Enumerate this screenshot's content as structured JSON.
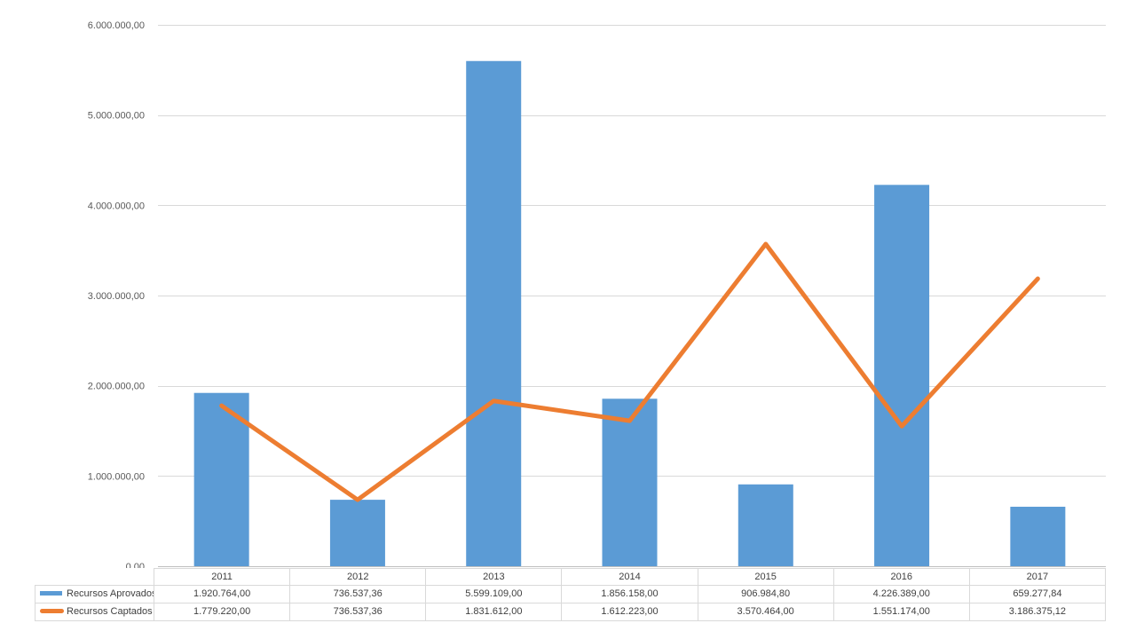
{
  "chart_data": {
    "type": "combo",
    "title": "",
    "xlabel": "",
    "ylabel": "",
    "categories": [
      "2011",
      "2012",
      "2013",
      "2014",
      "2015",
      "2016",
      "2017"
    ],
    "series": [
      {
        "name": "Recursos Aprovados",
        "type": "bar",
        "color": "#5B9BD5",
        "values": [
          1920764.0,
          736537.36,
          5599109.0,
          1856158.0,
          906984.8,
          4226389.0,
          659277.84
        ],
        "formatted": [
          "1.920.764,00",
          "736.537,36",
          "5.599.109,00",
          "1.856.158,00",
          "906.984,80",
          "4.226.389,00",
          "659.277,84"
        ]
      },
      {
        "name": "Recursos Captados",
        "type": "line",
        "color": "#ED7D31",
        "values": [
          1779220.0,
          736537.36,
          1831612.0,
          1612223.0,
          3570464.0,
          1551174.0,
          3186375.12
        ],
        "formatted": [
          "1.779.220,00",
          "736.537,36",
          "1.831.612,00",
          "1.612.223,00",
          "3.570.464,00",
          "1.551.174,00",
          "3.186.375,12"
        ]
      }
    ],
    "ylim": [
      0,
      6000000
    ],
    "yticks": [
      {
        "value": 6000000,
        "label": "6.000.000,00"
      },
      {
        "value": 5000000,
        "label": "5.000.000,00"
      },
      {
        "value": 4000000,
        "label": "4.000.000,00"
      },
      {
        "value": 3000000,
        "label": "3.000.000,00"
      },
      {
        "value": 2000000,
        "label": "2.000.000,00"
      },
      {
        "value": 1000000,
        "label": "1.000.000,00"
      },
      {
        "value": 0,
        "label": "0,00"
      }
    ],
    "grid": true,
    "legend_position": "table-left",
    "colors": {
      "grid": "#D9D9D9",
      "axis_line": "#BFBFBF",
      "axis_text": "#595959",
      "table_text": "#404040",
      "table_border": "#D9D9D9"
    }
  }
}
